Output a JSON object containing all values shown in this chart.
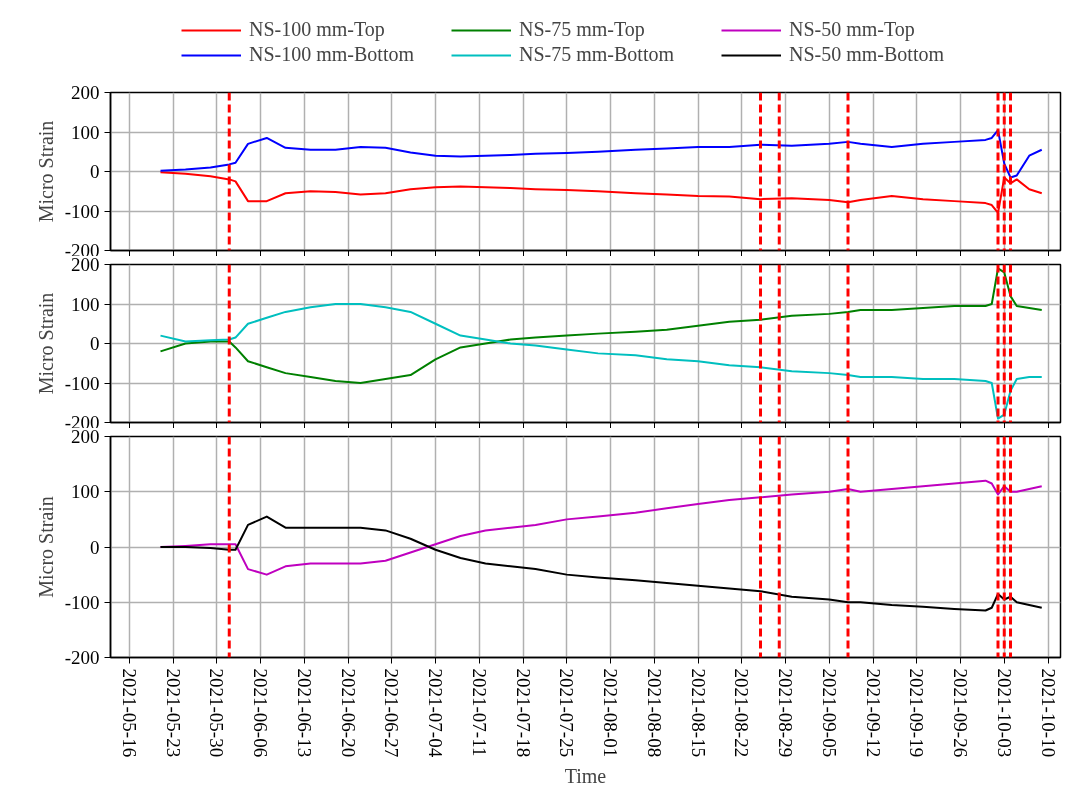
{
  "chart_data": [
    {
      "type": "line",
      "ylabel": "Micro Strain",
      "ylim": [
        -200,
        200
      ],
      "yticks": [
        -200,
        -100,
        0,
        100,
        200
      ],
      "xlim": [
        "2021-05-13",
        "2021-10-12"
      ],
      "xticks": [
        "2021-05-16",
        "2021-05-23",
        "2021-05-30",
        "2021-06-06",
        "2021-06-13",
        "2021-06-20",
        "2021-06-27",
        "2021-07-04",
        "2021-07-11",
        "2021-07-18",
        "2021-07-25",
        "2021-08-01",
        "2021-08-08",
        "2021-08-15",
        "2021-08-22",
        "2021-08-29",
        "2021-09-05",
        "2021-09-12",
        "2021-09-19",
        "2021-09-26",
        "2021-10-03",
        "2021-10-10"
      ],
      "tick_labels": "y",
      "grid": true,
      "legend": "top",
      "line_style": "solid",
      "marker": "none",
      "x": [
        "2021-05-21",
        "2021-05-25",
        "2021-05-29",
        "2021-06-01",
        "2021-06-02",
        "2021-06-04",
        "2021-06-07",
        "2021-06-10",
        "2021-06-14",
        "2021-06-18",
        "2021-06-22",
        "2021-06-26",
        "2021-06-30",
        "2021-07-04",
        "2021-07-08",
        "2021-07-12",
        "2021-07-16",
        "2021-07-20",
        "2021-07-25",
        "2021-07-30",
        "2021-08-05",
        "2021-08-10",
        "2021-08-15",
        "2021-08-20",
        "2021-08-25",
        "2021-08-30",
        "2021-09-05",
        "2021-09-08",
        "2021-09-10",
        "2021-09-15",
        "2021-09-20",
        "2021-09-25",
        "2021-09-30",
        "2021-10-01",
        "2021-10-02",
        "2021-10-03",
        "2021-10-04",
        "2021-10-05",
        "2021-10-07",
        "2021-10-09"
      ],
      "series": [
        {
          "name": "NS-100 mm-Top",
          "color": "#ff0000",
          "values": [
            -2,
            -6,
            -12,
            -20,
            -25,
            -75,
            -75,
            -55,
            -50,
            -52,
            -58,
            -55,
            -45,
            -40,
            -38,
            -40,
            -42,
            -45,
            -47,
            -50,
            -55,
            -58,
            -62,
            -63,
            -70,
            -68,
            -72,
            -78,
            -72,
            -62,
            -70,
            -75,
            -80,
            -85,
            -105,
            -15,
            -30,
            -20,
            -45,
            -55
          ]
        },
        {
          "name": "NS-100 mm-Bottom",
          "color": "#0000ff",
          "values": [
            2,
            5,
            10,
            18,
            22,
            70,
            85,
            60,
            55,
            55,
            62,
            60,
            48,
            40,
            38,
            40,
            42,
            45,
            47,
            50,
            55,
            58,
            62,
            62,
            68,
            65,
            70,
            75,
            70,
            62,
            70,
            75,
            80,
            85,
            105,
            20,
            -15,
            -10,
            40,
            55
          ]
        }
      ],
      "ref_lines": [
        {
          "axis": "x",
          "value": "2021-06-01",
          "color": "#ff0000",
          "line_style": "dashed"
        },
        {
          "axis": "x",
          "value": "2021-08-25",
          "color": "#ff0000",
          "line_style": "dashed"
        },
        {
          "axis": "x",
          "value": "2021-08-28",
          "color": "#ff0000",
          "line_style": "dashed"
        },
        {
          "axis": "x",
          "value": "2021-09-08",
          "color": "#ff0000",
          "line_style": "dashed"
        },
        {
          "axis": "x",
          "value": "2021-10-02",
          "color": "#ff0000",
          "line_style": "dashed"
        },
        {
          "axis": "x",
          "value": "2021-10-03",
          "color": "#ff0000",
          "line_style": "dashed"
        },
        {
          "axis": "x",
          "value": "2021-10-04",
          "color": "#ff0000",
          "line_style": "dashed"
        }
      ]
    },
    {
      "type": "line",
      "ylabel": "Micro Strain",
      "ylim": [
        -200,
        200
      ],
      "yticks": [
        -200,
        -100,
        0,
        100,
        200
      ],
      "xlim": [
        "2021-05-13",
        "2021-10-12"
      ],
      "xticks": [
        "2021-05-16",
        "2021-05-23",
        "2021-05-30",
        "2021-06-06",
        "2021-06-13",
        "2021-06-20",
        "2021-06-27",
        "2021-07-04",
        "2021-07-11",
        "2021-07-18",
        "2021-07-25",
        "2021-08-01",
        "2021-08-08",
        "2021-08-15",
        "2021-08-22",
        "2021-08-29",
        "2021-09-05",
        "2021-09-12",
        "2021-09-19",
        "2021-09-26",
        "2021-10-03",
        "2021-10-10"
      ],
      "tick_labels": "y",
      "grid": true,
      "legend": "top",
      "line_style": "solid",
      "marker": "none",
      "x": [
        "2021-05-21",
        "2021-05-25",
        "2021-05-29",
        "2021-06-01",
        "2021-06-02",
        "2021-06-04",
        "2021-06-07",
        "2021-06-10",
        "2021-06-14",
        "2021-06-18",
        "2021-06-22",
        "2021-06-26",
        "2021-06-30",
        "2021-07-04",
        "2021-07-08",
        "2021-07-12",
        "2021-07-16",
        "2021-07-20",
        "2021-07-25",
        "2021-07-30",
        "2021-08-05",
        "2021-08-10",
        "2021-08-15",
        "2021-08-20",
        "2021-08-25",
        "2021-08-30",
        "2021-09-05",
        "2021-09-08",
        "2021-09-10",
        "2021-09-15",
        "2021-09-20",
        "2021-09-25",
        "2021-09-30",
        "2021-10-01",
        "2021-10-02",
        "2021-10-03",
        "2021-10-04",
        "2021-10-05",
        "2021-10-07",
        "2021-10-09"
      ],
      "series": [
        {
          "name": "NS-75 mm-Top",
          "color": "#008000",
          "values": [
            -20,
            0,
            5,
            5,
            -10,
            -45,
            -60,
            -75,
            -85,
            -95,
            -100,
            -90,
            -80,
            -40,
            -10,
            0,
            10,
            15,
            20,
            25,
            30,
            35,
            45,
            55,
            60,
            70,
            75,
            80,
            85,
            85,
            90,
            95,
            95,
            100,
            190,
            180,
            120,
            95,
            90,
            85
          ]
        },
        {
          "name": "NS-75 mm-Bottom",
          "color": "#00bfbf",
          "values": [
            20,
            5,
            8,
            10,
            15,
            50,
            65,
            80,
            92,
            100,
            100,
            92,
            80,
            50,
            20,
            10,
            0,
            -5,
            -15,
            -25,
            -30,
            -40,
            -45,
            -55,
            -60,
            -70,
            -75,
            -80,
            -85,
            -85,
            -90,
            -90,
            -95,
            -100,
            -190,
            -180,
            -120,
            -90,
            -85,
            -85
          ]
        }
      ],
      "ref_lines": [
        {
          "axis": "x",
          "value": "2021-06-01",
          "color": "#ff0000",
          "line_style": "dashed"
        },
        {
          "axis": "x",
          "value": "2021-08-25",
          "color": "#ff0000",
          "line_style": "dashed"
        },
        {
          "axis": "x",
          "value": "2021-08-28",
          "color": "#ff0000",
          "line_style": "dashed"
        },
        {
          "axis": "x",
          "value": "2021-09-08",
          "color": "#ff0000",
          "line_style": "dashed"
        },
        {
          "axis": "x",
          "value": "2021-10-02",
          "color": "#ff0000",
          "line_style": "dashed"
        },
        {
          "axis": "x",
          "value": "2021-10-03",
          "color": "#ff0000",
          "line_style": "dashed"
        },
        {
          "axis": "x",
          "value": "2021-10-04",
          "color": "#ff0000",
          "line_style": "dashed"
        }
      ]
    },
    {
      "type": "line",
      "xlabel": "Time",
      "ylabel": "Micro Strain",
      "ylim": [
        -200,
        200
      ],
      "yticks": [
        -200,
        -100,
        0,
        100,
        200
      ],
      "xlim": [
        "2021-05-13",
        "2021-10-12"
      ],
      "xticks": [
        "2021-05-16",
        "2021-05-23",
        "2021-05-30",
        "2021-06-06",
        "2021-06-13",
        "2021-06-20",
        "2021-06-27",
        "2021-07-04",
        "2021-07-11",
        "2021-07-18",
        "2021-07-25",
        "2021-08-01",
        "2021-08-08",
        "2021-08-15",
        "2021-08-22",
        "2021-08-29",
        "2021-09-05",
        "2021-09-12",
        "2021-09-19",
        "2021-09-26",
        "2021-10-03",
        "2021-10-10"
      ],
      "grid": true,
      "legend": "top",
      "line_style": "solid",
      "marker": "none",
      "x": [
        "2021-05-21",
        "2021-05-25",
        "2021-05-29",
        "2021-06-01",
        "2021-06-02",
        "2021-06-04",
        "2021-06-07",
        "2021-06-10",
        "2021-06-14",
        "2021-06-18",
        "2021-06-22",
        "2021-06-26",
        "2021-06-30",
        "2021-07-04",
        "2021-07-08",
        "2021-07-12",
        "2021-07-16",
        "2021-07-20",
        "2021-07-25",
        "2021-07-30",
        "2021-08-05",
        "2021-08-10",
        "2021-08-15",
        "2021-08-20",
        "2021-08-25",
        "2021-08-30",
        "2021-09-05",
        "2021-09-08",
        "2021-09-10",
        "2021-09-15",
        "2021-09-20",
        "2021-09-25",
        "2021-09-30",
        "2021-10-01",
        "2021-10-02",
        "2021-10-03",
        "2021-10-04",
        "2021-10-05",
        "2021-10-07",
        "2021-10-09"
      ],
      "series": [
        {
          "name": "NS-50 mm-Top",
          "color": "#bf00bf",
          "values": [
            0,
            2,
            5,
            5,
            5,
            -40,
            -50,
            -35,
            -30,
            -30,
            -30,
            -25,
            -10,
            5,
            20,
            30,
            35,
            40,
            50,
            55,
            62,
            70,
            78,
            85,
            90,
            95,
            100,
            105,
            100,
            105,
            110,
            115,
            120,
            115,
            95,
            110,
            100,
            100,
            105,
            110
          ]
        },
        {
          "name": "NS-50 mm-Bottom",
          "color": "#000000",
          "values": [
            0,
            0,
            -2,
            -5,
            -5,
            40,
            55,
            35,
            35,
            35,
            35,
            30,
            15,
            -5,
            -20,
            -30,
            -35,
            -40,
            -50,
            -55,
            -60,
            -65,
            -70,
            -75,
            -80,
            -90,
            -95,
            -100,
            -100,
            -105,
            -108,
            -112,
            -115,
            -110,
            -85,
            -95,
            -90,
            -100,
            -105,
            -110
          ]
        }
      ],
      "ref_lines": [
        {
          "axis": "x",
          "value": "2021-06-01",
          "color": "#ff0000",
          "line_style": "dashed"
        },
        {
          "axis": "x",
          "value": "2021-08-25",
          "color": "#ff0000",
          "line_style": "dashed"
        },
        {
          "axis": "x",
          "value": "2021-08-28",
          "color": "#ff0000",
          "line_style": "dashed"
        },
        {
          "axis": "x",
          "value": "2021-09-08",
          "color": "#ff0000",
          "line_style": "dashed"
        },
        {
          "axis": "x",
          "value": "2021-10-02",
          "color": "#ff0000",
          "line_style": "dashed"
        },
        {
          "axis": "x",
          "value": "2021-10-03",
          "color": "#ff0000",
          "line_style": "dashed"
        },
        {
          "axis": "x",
          "value": "2021-10-04",
          "color": "#ff0000",
          "line_style": "dashed"
        }
      ]
    }
  ]
}
